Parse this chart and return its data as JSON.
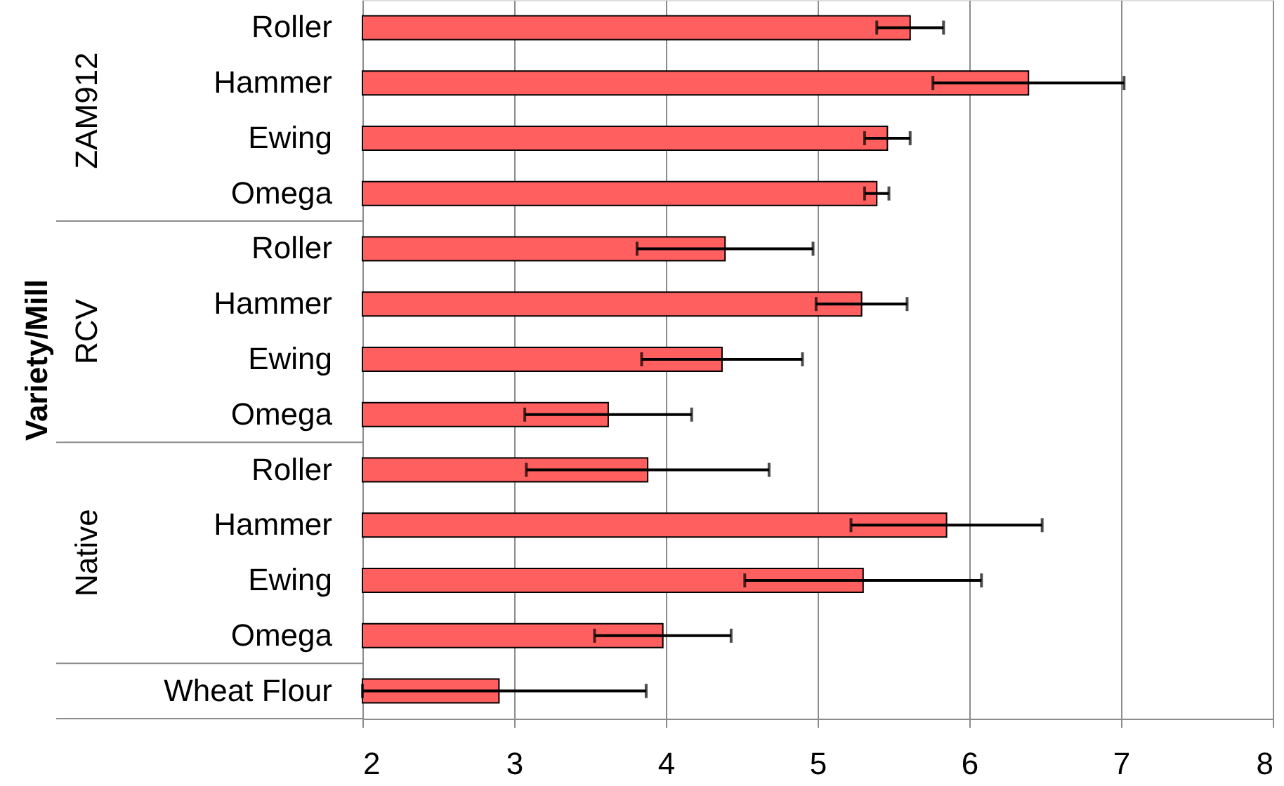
{
  "chart_data": {
    "type": "bar",
    "orientation": "horizontal",
    "ylabel": "Variety/Mill",
    "categories": [
      "Roller",
      "Hammer",
      "Ewing",
      "Omega",
      "Roller",
      "Hammer",
      "Ewing",
      "Omega",
      "Roller",
      "Hammer",
      "Ewing",
      "Omega",
      "Wheat Flour"
    ],
    "values": [
      5.61,
      6.39,
      5.46,
      5.39,
      4.39,
      5.29,
      4.37,
      3.62,
      3.88,
      5.85,
      5.3,
      3.98,
      2.9
    ],
    "errors": [
      0.22,
      0.63,
      0.15,
      0.08,
      0.58,
      0.3,
      0.53,
      0.55,
      0.8,
      0.63,
      0.78,
      0.45,
      [
        2,
        3.87
      ]
    ],
    "color": "#ff5f5f",
    "xlim": [
      2,
      8
    ],
    "xticks": [
      2,
      3,
      4,
      5,
      6,
      7,
      8
    ],
    "grid": "x",
    "annotations": [
      "ZAM912",
      "RCV",
      "Native"
    ]
  }
}
